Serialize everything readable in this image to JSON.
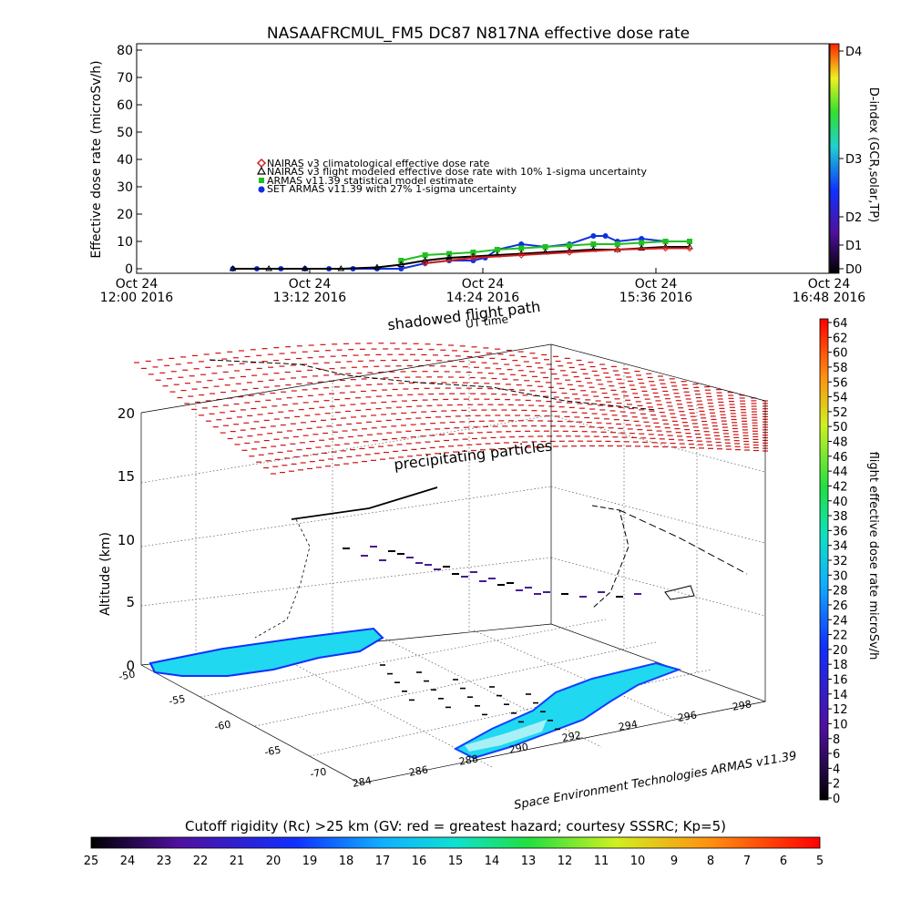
{
  "chart_data": [
    {
      "type": "line",
      "title": "NASAAFRCMUL_FM5 DC87 N817NA effective dose rate",
      "ylabel": "Effective dose rate (microSv/h)",
      "ylim": [
        0,
        80
      ],
      "yticks": [
        "0",
        "10",
        "20",
        "30",
        "40",
        "50",
        "60",
        "70",
        "80"
      ],
      "xlim": [
        "12:00 2016",
        "16:48 2016"
      ],
      "xtick_dates": [
        "Oct 24",
        "Oct 24",
        "Oct 24",
        "Oct 24",
        "Oct 24"
      ],
      "xtick_times": [
        "12:00 2016",
        "13:12 2016",
        "14:24 2016",
        "15:36 2016",
        "16:48 2016"
      ],
      "legend": [
        {
          "label": "NAIRAS v3 climatological effective dose rate",
          "color": "#d02020",
          "marker": "diamond"
        },
        {
          "label": "NAIRAS v3 flight modeled effective dose rate with 10% 1-sigma uncertainty",
          "color": "#000000",
          "marker": "triangle"
        },
        {
          "label": "ARMAS v11.39 statistical model estimate",
          "color": "#20c020",
          "marker": "square"
        },
        {
          "label": "SET ARMAS v11.39 with 27% 1-sigma uncertainty",
          "color": "#1030e0",
          "marker": "circle"
        }
      ],
      "series": [
        {
          "name": "SET ARMAS v11.39 with 27% 1-sigma uncertainty",
          "x": [
            "12:40",
            "12:50",
            "13:00",
            "13:10",
            "13:20",
            "13:30",
            "13:40",
            "13:50",
            "14:00",
            "14:10",
            "14:20",
            "14:25",
            "14:30",
            "14:40",
            "14:50",
            "15:00",
            "15:10",
            "15:15",
            "15:20",
            "15:30",
            "15:40",
            "15:50"
          ],
          "y": [
            0,
            0,
            0,
            0,
            0,
            0,
            0,
            0,
            2,
            3,
            3,
            4,
            7,
            9,
            8,
            9,
            12,
            12,
            10,
            11,
            10,
            10
          ]
        },
        {
          "name": "ARMAS v11.39 statistical model estimate",
          "x": [
            "13:50",
            "14:00",
            "14:10",
            "14:20",
            "14:30",
            "14:40",
            "14:50",
            "15:00",
            "15:10",
            "15:20",
            "15:30",
            "15:40",
            "15:50"
          ],
          "y": [
            3,
            5,
            5.5,
            6,
            7,
            7.5,
            8,
            8.5,
            9,
            9,
            9.5,
            10,
            10
          ]
        },
        {
          "name": "NAIRAS v3 flight modeled effective dose rate with 10% 1-sigma uncertainty",
          "x": [
            "12:40",
            "12:55",
            "13:10",
            "13:25",
            "13:40",
            "13:50",
            "14:00",
            "14:10",
            "14:20",
            "14:30",
            "14:40",
            "14:50",
            "15:00",
            "15:10",
            "15:20",
            "15:30",
            "15:40",
            "15:50"
          ],
          "y": [
            0,
            0,
            0,
            0,
            0.5,
            1.5,
            3,
            4,
            4.5,
            5,
            5.5,
            6,
            6.5,
            7,
            7,
            7.5,
            8,
            8
          ]
        },
        {
          "name": "NAIRAS v3 climatological effective dose rate",
          "x": [
            "14:00",
            "14:20",
            "14:40",
            "15:00",
            "15:20",
            "15:40",
            "15:50"
          ],
          "y": [
            2,
            4,
            5,
            6,
            7,
            7.5,
            7.5
          ]
        }
      ],
      "dindex": {
        "label": "D-index (GCR,solar,TP)",
        "ticks": [
          "D0",
          "D1",
          "D2",
          "D3",
          "D4"
        ]
      }
    },
    {
      "type": "scatter",
      "zlabel": "Altitude (km)",
      "zticks": [
        "0",
        "5",
        "10",
        "15",
        "20"
      ],
      "lat_ticks": [
        "-50",
        "-55",
        "-60",
        "-65",
        "-70"
      ],
      "lon_ticks": [
        "284",
        "286",
        "288",
        "290",
        "292",
        "294",
        "296",
        "298"
      ],
      "labels": {
        "top1": "shadowed flight path",
        "top2": "UT time",
        "middle": "precipitating particles",
        "credit": "Space Environment Technologies ARMAS v11.39"
      },
      "colorbar_right": {
        "label": "flight effective dose rate microSv/h",
        "ticks": [
          "0",
          "2",
          "4",
          "6",
          "8",
          "10",
          "12",
          "14",
          "16",
          "18",
          "20",
          "22",
          "24",
          "26",
          "28",
          "30",
          "32",
          "34",
          "36",
          "38",
          "40",
          "42",
          "44",
          "46",
          "48",
          "50",
          "52",
          "54",
          "56",
          "58",
          "60",
          "62",
          "64"
        ]
      },
      "colorbar_bottom": {
        "label": "Cutoff rigidity (Rc) >25 km (GV: red = greatest hazard; courtesy SSSRC; Kp=5)",
        "ticks": [
          "25",
          "24",
          "23",
          "22",
          "21",
          "20",
          "19",
          "18",
          "17",
          "16",
          "15",
          "14",
          "13",
          "12",
          "11",
          "10",
          "9",
          "8",
          "7",
          "6",
          "5"
        ]
      }
    }
  ]
}
